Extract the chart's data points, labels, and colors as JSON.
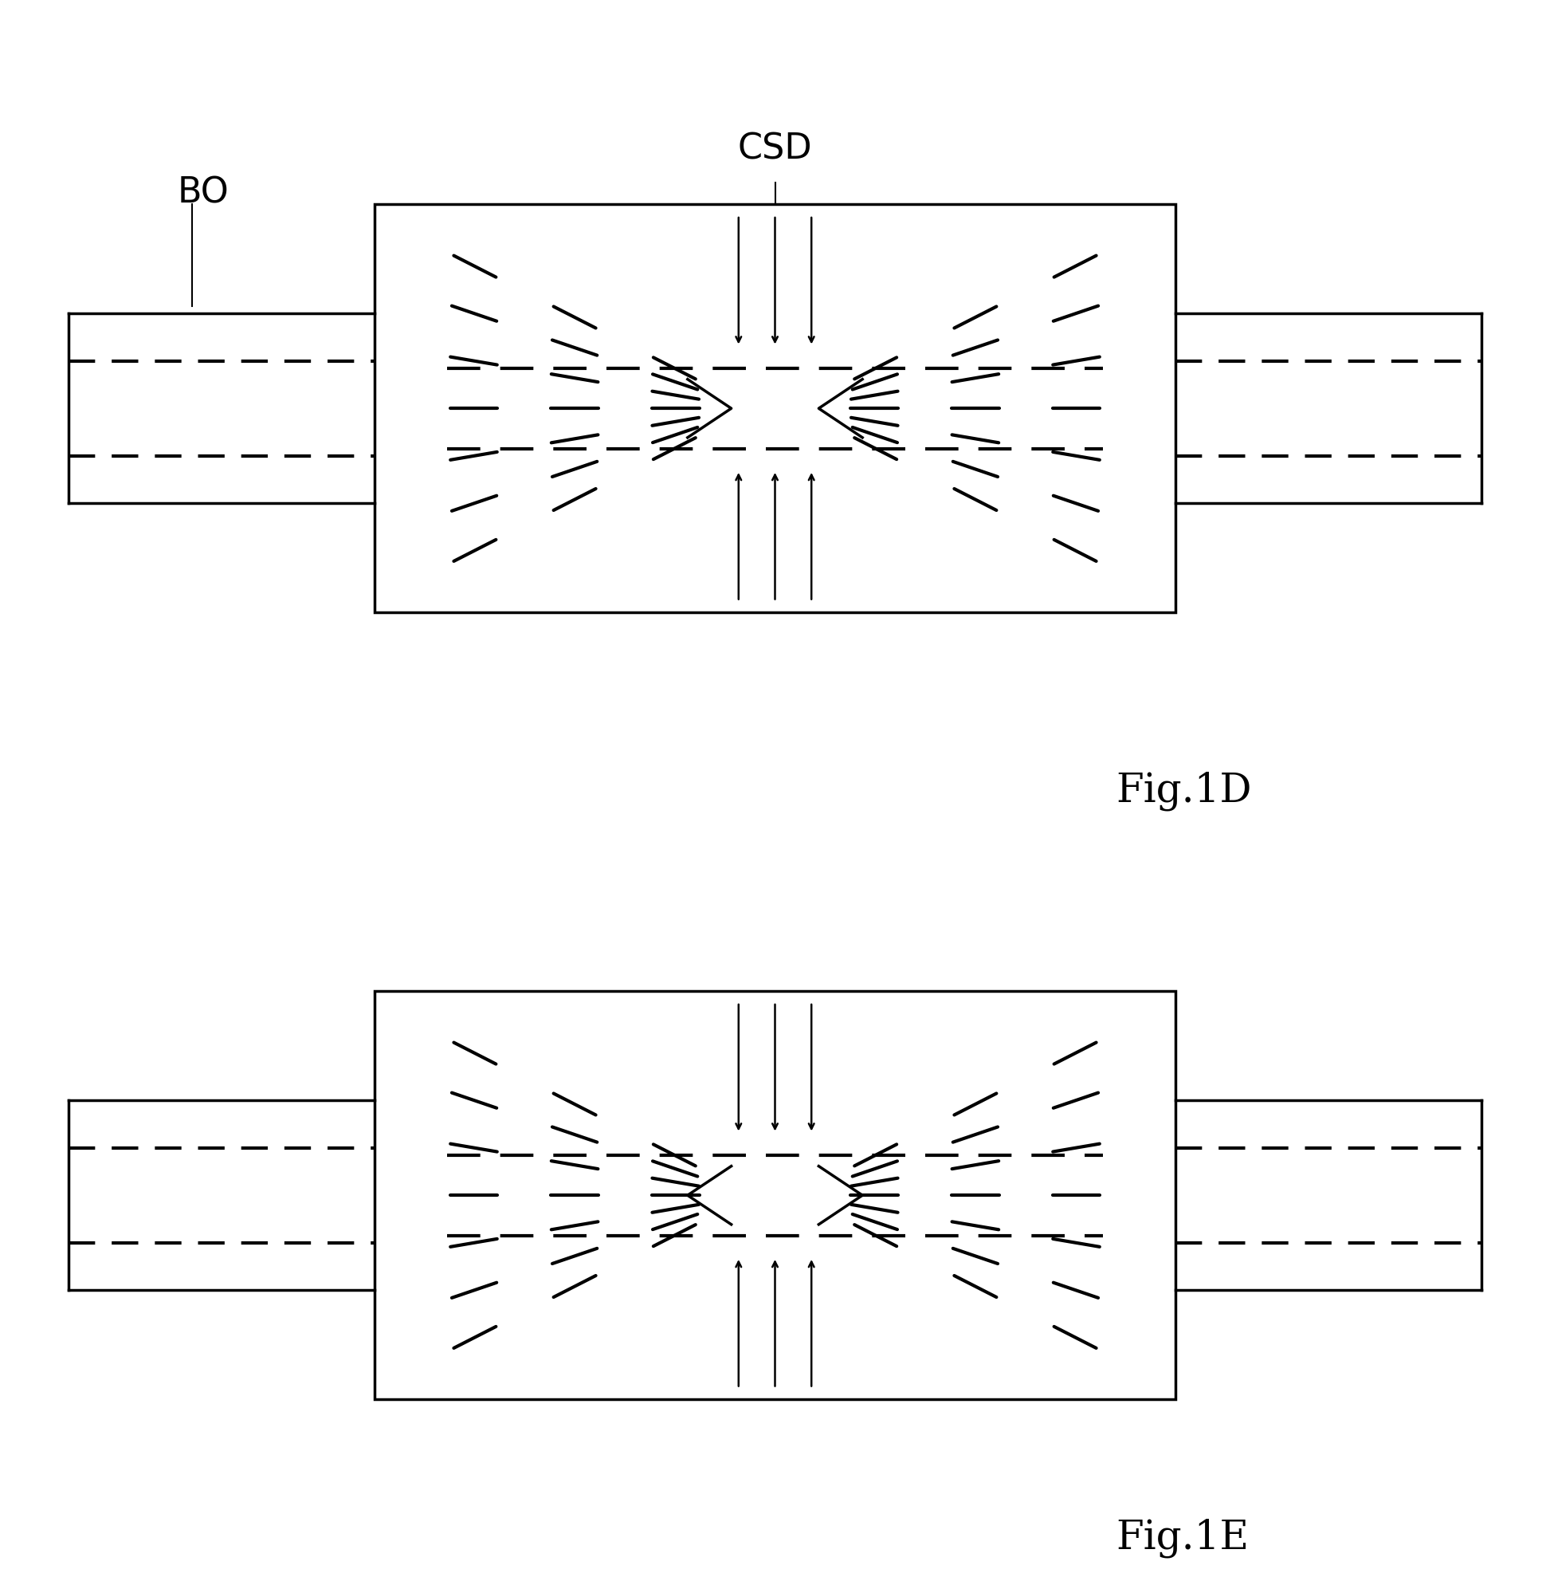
{
  "bg_color": "#ffffff",
  "line_color": "#000000",
  "fig_width": 19.45,
  "fig_height": 19.74,
  "fig1d_label": "Fig.1D",
  "fig1e_label": "Fig.1E",
  "label_bo": "BO",
  "label_csd": "CSD"
}
